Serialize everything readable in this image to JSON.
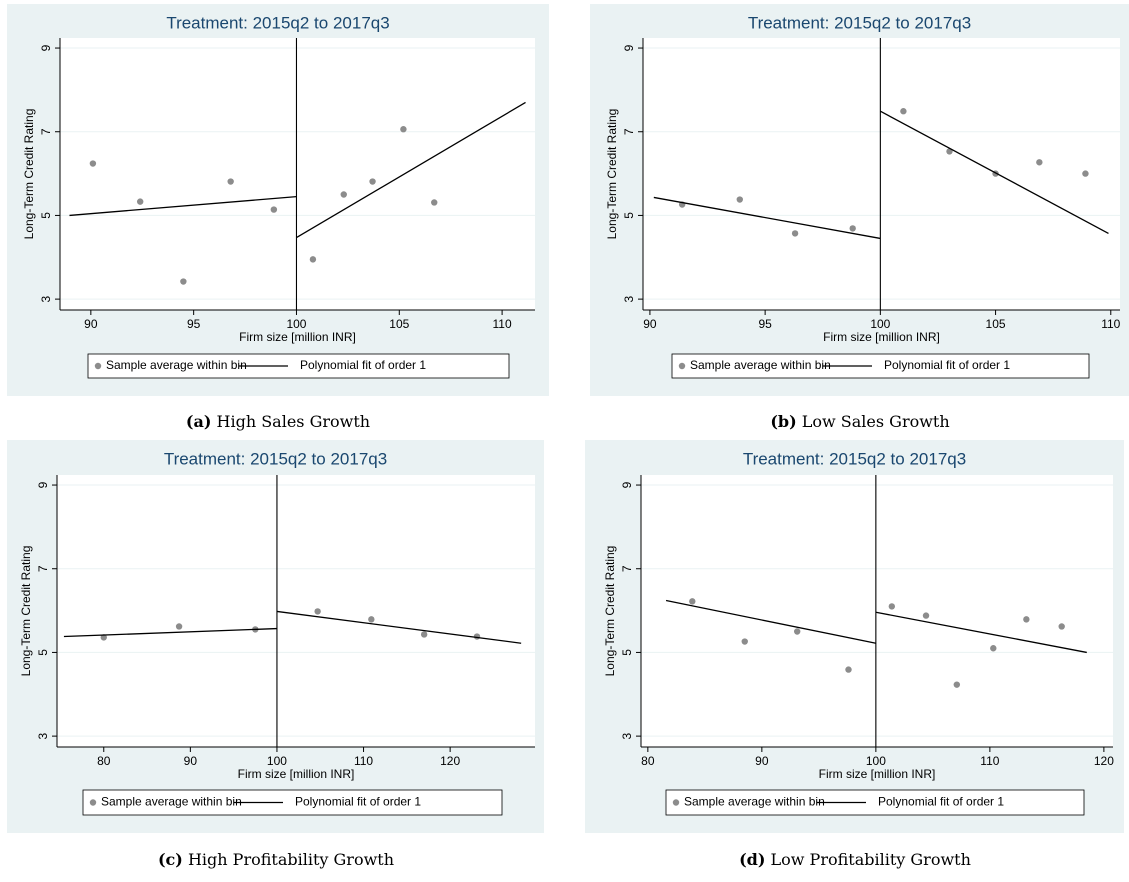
{
  "chart_data": [
    {
      "type": "scatter",
      "title": "Treatment: 2015q2 to 2017q3",
      "xlabel": "Firm size [million INR]",
      "ylabel": "Long-Term Credit Rating",
      "label": "(a)",
      "caption": "High Sales Growth",
      "xlim": [
        88.5,
        111.6
      ],
      "ylim": [
        2.74,
        9.24
      ],
      "xticks": [
        90,
        95,
        100,
        105,
        110
      ],
      "yticks": [
        3,
        5,
        7,
        9
      ],
      "grid": true,
      "cutoff": 100,
      "series": [
        {
          "name": "Sample average within bin",
          "type": "scatter",
          "color": "#8c8c8c",
          "x": [
            90.1,
            92.4,
            94.5,
            96.8,
            98.9,
            100.8,
            102.3,
            103.7,
            105.2,
            106.7
          ],
          "values": [
            6.24,
            5.33,
            3.42,
            5.81,
            5.14,
            3.95,
            5.5,
            5.81,
            7.06,
            5.31
          ]
        },
        {
          "name": "Polynomial fit of order 1",
          "type": "line",
          "color": "#000000",
          "x": [
            88.96,
            100,
            100,
            100,
            111.14
          ],
          "values": [
            5.0,
            5.45,
            null,
            4.47,
            7.7
          ]
        }
      ]
    },
    {
      "type": "scatter",
      "title": "Treatment: 2015q2 to 2017q3",
      "xlabel": "Firm size [million INR]",
      "ylabel": "Long-Term Credit Rating",
      "label": "(b)",
      "caption": "Low Sales Growth",
      "xlim": [
        89.7,
        110.4
      ],
      "ylim": [
        2.74,
        9.24
      ],
      "xticks": [
        90,
        95,
        100,
        105,
        110
      ],
      "yticks": [
        3,
        5,
        7,
        9
      ],
      "grid": true,
      "cutoff": 100,
      "series": [
        {
          "name": "Sample average within bin",
          "type": "scatter",
          "color": "#8c8c8c",
          "x": [
            91.4,
            93.9,
            96.3,
            98.8,
            101.0,
            103.0,
            105.0,
            106.9,
            108.9
          ],
          "values": [
            5.26,
            5.38,
            4.57,
            4.69,
            7.49,
            6.53,
            6.0,
            6.27,
            6.0
          ]
        },
        {
          "name": "Polynomial fit of order 1",
          "type": "line",
          "color": "#000000",
          "x": [
            90.17,
            100,
            100,
            100,
            109.9
          ],
          "values": [
            5.43,
            4.45,
            null,
            7.49,
            4.57
          ]
        }
      ]
    },
    {
      "type": "scatter",
      "title": "Treatment: 2015q2 to 2017q3",
      "xlabel": "Firm size [million INR]",
      "ylabel": "Long-Term Credit Rating",
      "label": "(c)",
      "caption": "High Profitability Growth",
      "xlim": [
        74.6,
        129.8
      ],
      "ylim": [
        2.74,
        9.24
      ],
      "xticks": [
        80,
        90,
        100,
        110,
        120
      ],
      "yticks": [
        3,
        5,
        7,
        9
      ],
      "grid": true,
      "cutoff": 100,
      "series": [
        {
          "name": "Sample average within bin",
          "type": "scatter",
          "color": "#8c8c8c",
          "x": [
            80,
            88.7,
            97.5,
            104.7,
            110.9,
            117.0,
            123.1
          ],
          "values": [
            5.36,
            5.62,
            5.55,
            5.98,
            5.79,
            5.43,
            5.38
          ]
        },
        {
          "name": "Polynomial fit of order 1",
          "type": "line",
          "color": "#000000",
          "x": [
            75.4,
            100,
            100,
            100,
            128.2
          ],
          "values": [
            5.38,
            5.57,
            null,
            5.98,
            5.22
          ]
        }
      ]
    },
    {
      "type": "scatter",
      "title": "Treatment: 2015q2 to 2017q3",
      "xlabel": "Firm size [million INR]",
      "ylabel": "Long-Term Credit Rating",
      "label": "(d)",
      "caption": "Low Profitability Growth",
      "xlim": [
        79.4,
        120.8
      ],
      "ylim": [
        2.74,
        9.24
      ],
      "xticks": [
        80,
        90,
        100,
        110,
        120
      ],
      "yticks": [
        3,
        5,
        7,
        9
      ],
      "grid": true,
      "cutoff": 100,
      "series": [
        {
          "name": "Sample average within bin",
          "type": "scatter",
          "color": "#8c8c8c",
          "x": [
            83.9,
            88.5,
            93.1,
            97.6,
            101.4,
            104.4,
            107.1,
            110.3,
            113.2,
            116.3
          ],
          "values": [
            6.22,
            5.26,
            5.5,
            4.59,
            6.1,
            5.88,
            4.23,
            5.1,
            5.79,
            5.62
          ]
        },
        {
          "name": "Polynomial fit of order 1",
          "type": "line",
          "color": "#000000",
          "x": [
            81.6,
            100,
            100,
            100,
            118.5
          ],
          "values": [
            6.24,
            5.22,
            null,
            5.96,
            5.0
          ]
        }
      ]
    }
  ]
}
